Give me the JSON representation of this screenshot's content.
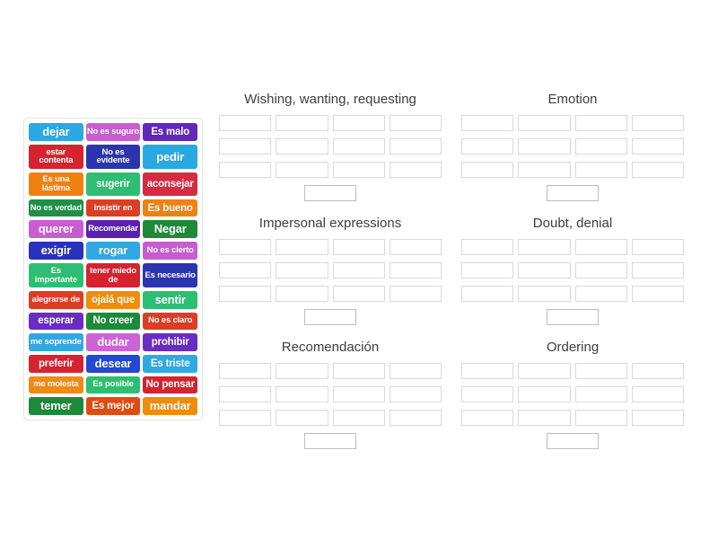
{
  "word_bank": {
    "tiles": [
      {
        "label": "dejar",
        "color": "#29a8e1"
      },
      {
        "label": "No es suguro",
        "color": "#c75ecf"
      },
      {
        "label": "Es malo",
        "color": "#6128bd"
      },
      {
        "label": "estar contenta",
        "color": "#d5232f"
      },
      {
        "label": "No es evidente",
        "color": "#2b35ad"
      },
      {
        "label": "pedir",
        "color": "#29a8e1"
      },
      {
        "label": "Es una lástima",
        "color": "#f0810f"
      },
      {
        "label": "sugerir",
        "color": "#2dbe73"
      },
      {
        "label": "aconsejar",
        "color": "#d52b43"
      },
      {
        "label": "No es verdad",
        "color": "#1f9045"
      },
      {
        "label": "insistir en",
        "color": "#dc3d23"
      },
      {
        "label": "Es bueno",
        "color": "#f0810f"
      },
      {
        "label": "querer",
        "color": "#c75ecf"
      },
      {
        "label": "Recomendar",
        "color": "#5b21ae"
      },
      {
        "label": "Negar",
        "color": "#1d8a3a"
      },
      {
        "label": "exigir",
        "color": "#2a31bb"
      },
      {
        "label": "rogar",
        "color": "#31a8e4"
      },
      {
        "label": "No es cierto",
        "color": "#c75ecf"
      },
      {
        "label": "Es importante",
        "color": "#2dbe73"
      },
      {
        "label": "tener miedo de",
        "color": "#d5232f"
      },
      {
        "label": "Es necesario",
        "color": "#2b35ad"
      },
      {
        "label": "alegrarse de",
        "color": "#dc3d23"
      },
      {
        "label": "ojalá que",
        "color": "#f08c0a"
      },
      {
        "label": "sentir",
        "color": "#2dbe73"
      },
      {
        "label": "esperar",
        "color": "#6a2dc4"
      },
      {
        "label": "No creer",
        "color": "#1d8a3a"
      },
      {
        "label": "No es claro",
        "color": "#dc3d23"
      },
      {
        "label": "me soprende",
        "color": "#31a8e4"
      },
      {
        "label": "dudar",
        "color": "#cb63d6"
      },
      {
        "label": "prohibir",
        "color": "#6a2dc4"
      },
      {
        "label": "preferir",
        "color": "#d5232f"
      },
      {
        "label": "desear",
        "color": "#2448d1"
      },
      {
        "label": "Es triste",
        "color": "#31a8e4"
      },
      {
        "label": "me molesta",
        "color": "#ef8a14"
      },
      {
        "label": "Es posible",
        "color": "#2dbe73"
      },
      {
        "label": "No pensar",
        "color": "#d5232f"
      },
      {
        "label": "temer",
        "color": "#1d8a3a"
      },
      {
        "label": "Es mejor",
        "color": "#e24a10"
      },
      {
        "label": "mandar",
        "color": "#f08c0a"
      }
    ]
  },
  "groups": [
    {
      "title": "Wishing, wanting, requesting",
      "empty_slots": 12,
      "single_slot": true
    },
    {
      "title": "Emotion",
      "empty_slots": 12,
      "single_slot": true
    },
    {
      "title": "Impersonal expressions",
      "empty_slots": 12,
      "single_slot": true
    },
    {
      "title": "Doubt, denial",
      "empty_slots": 12,
      "single_slot": true
    },
    {
      "title": "Recomendación",
      "empty_slots": 12,
      "single_slot": true
    },
    {
      "title": "Ordering",
      "empty_slots": 12,
      "single_slot": true
    }
  ],
  "colors": {
    "tile_text": "#ffffff",
    "slot_border": "#d9d9d9",
    "single_slot_border": "#bdbdbd",
    "title_text": "#3d3d3d",
    "panel_border": "#e3e3e3"
  }
}
